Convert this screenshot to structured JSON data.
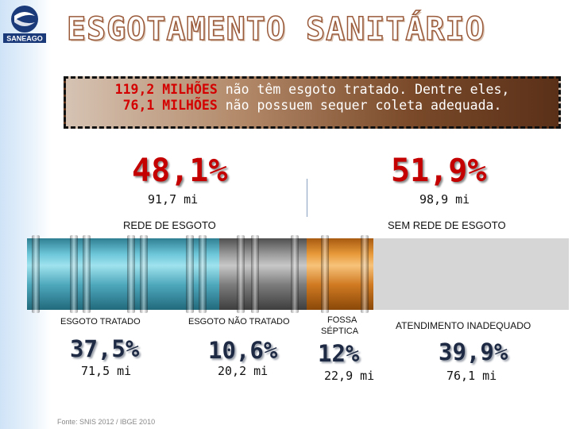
{
  "logo": {
    "text": "SANEAGO",
    "icon": "saneago-logo-icon"
  },
  "title": "ESGOTAMENTO SANITÁRIO",
  "banner": {
    "line1_highlight": "119,2 MILHÕES",
    "line1_rest": " não têm esgoto tratado. Dentre eles,",
    "line2_highlight": "76,1 MILHÕES",
    "line2_rest": " não possuem sequer coleta adequada."
  },
  "top": {
    "left": {
      "percent": "48,1%",
      "amount": "91,7 mi",
      "label": "REDE DE ESGOTO"
    },
    "right": {
      "percent": "51,9%",
      "amount": "98,9 mi",
      "label": "SEM REDE DE ESGOTO"
    }
  },
  "segments": [
    {
      "label": "ESGOTO TRATADO",
      "percent": "37,5%",
      "amount": "71,5 mi",
      "color": "#4ea8bc"
    },
    {
      "label": "ESGOTO NÃO TRATADO",
      "percent": "10,6%",
      "amount": "20,2 mi",
      "color": "#9a9a9a"
    },
    {
      "label_line1": "FOSSA",
      "label_line2": "SÉPTICA",
      "percent": "12%",
      "amount": "22,9 mi",
      "color": "#e89a3a"
    },
    {
      "label": "ATENDIMENTO INADEQUADO",
      "percent": "39,9%",
      "amount": "76,1 mi",
      "color": "#d6d6d6"
    }
  ],
  "source": "Fonte: SNIS 2012 / IBGE 2010"
}
